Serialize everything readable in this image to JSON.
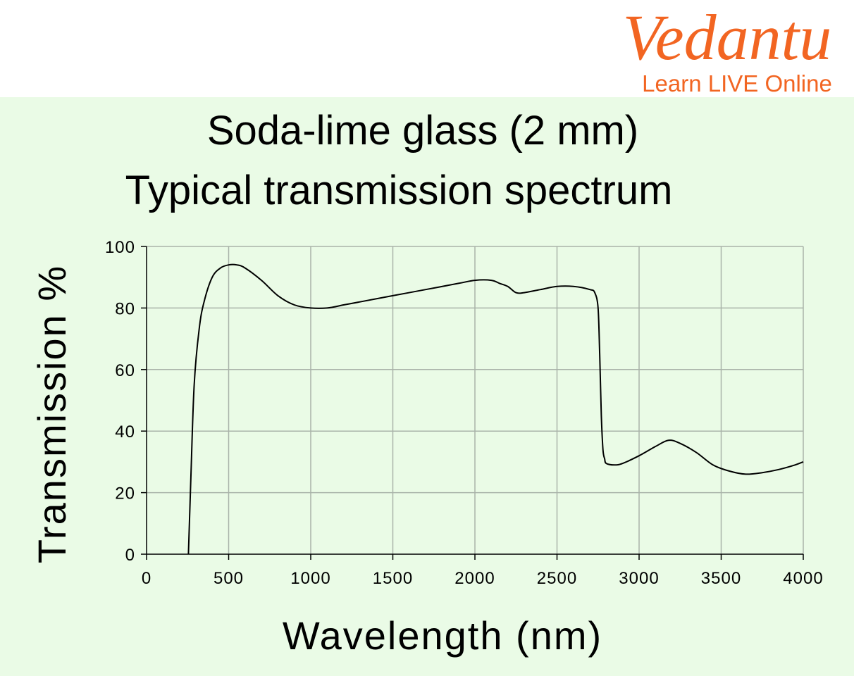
{
  "brand": {
    "name": "Vedantu",
    "tagline": "Learn LIVE Online",
    "color": "#f26522"
  },
  "panel_color": "#eafbe6",
  "chart_data": {
    "type": "line",
    "title": "Soda-lime glass (2 mm)",
    "subtitle": "Typical transmission spectrum",
    "xlabel": "Wavelength  (nm)",
    "ylabel": "Transmission %",
    "xlim": [
      0,
      4000
    ],
    "ylim": [
      0,
      100
    ],
    "xticks": [
      0,
      500,
      1000,
      1500,
      2000,
      2500,
      3000,
      3500,
      4000
    ],
    "yticks": [
      0,
      20,
      40,
      60,
      80,
      100
    ],
    "grid": true,
    "grid_color": "#a9b3a9",
    "line_color": "#000000",
    "series": [
      {
        "x": [
          255,
          270,
          290,
          320,
          350,
          400,
          450,
          500,
          550,
          600,
          700,
          800,
          900,
          1000,
          1100,
          1200,
          1300,
          1500,
          1700,
          1900,
          2000,
          2100,
          2150,
          2200,
          2250,
          2300,
          2400,
          2500,
          2600,
          2700,
          2730,
          2750,
          2760,
          2770,
          2780,
          2790,
          2800,
          2850,
          2900,
          3000,
          3100,
          3180,
          3250,
          3350,
          3450,
          3550,
          3650,
          3750,
          3850,
          3950,
          4000
        ],
        "y": [
          0,
          25,
          55,
          73,
          82,
          90,
          93,
          94,
          94,
          93,
          89,
          84,
          81,
          80,
          80,
          81,
          82,
          84,
          86,
          88,
          89,
          89,
          88,
          87,
          85,
          85,
          86,
          87,
          87,
          86,
          85,
          80,
          65,
          45,
          34,
          31,
          29.5,
          29,
          29.5,
          32,
          35,
          37,
          36,
          33,
          29,
          27,
          26,
          26.5,
          27.5,
          29,
          30
        ]
      }
    ]
  }
}
